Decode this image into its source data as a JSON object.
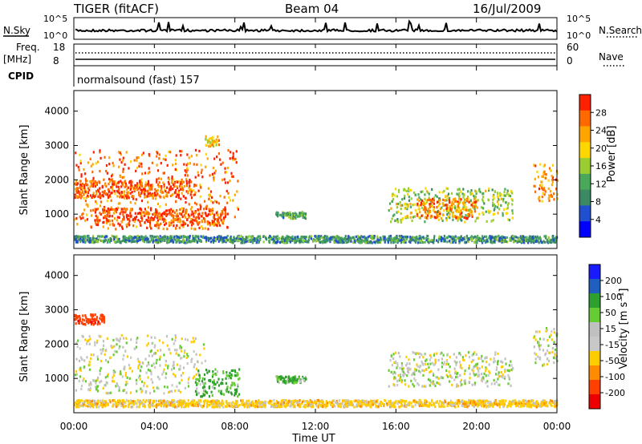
{
  "header": {
    "radar": "TIGER (fitACF)",
    "beam": "Beam 04",
    "date": "16/Jul/2009"
  },
  "noise_panel": {
    "left_label": "N.Sky",
    "right_label": "N.Search",
    "ticks": [
      "10^5",
      "10^0"
    ]
  },
  "freq_panel": {
    "left_label_1": "Freq.",
    "left_label_2": "[MHz]",
    "left_ticks": [
      "18",
      "8"
    ],
    "right_label": "Nave",
    "right_ticks": [
      "60",
      "0"
    ]
  },
  "cpid": {
    "label": "CPID",
    "text": "normalsound (fast) 157"
  },
  "colors": {
    "power": [
      "#0000ff",
      "#2050d0",
      "#3c8a64",
      "#4aa85a",
      "#9acd32",
      "#ffd700",
      "#ffa500",
      "#ff6a00",
      "#ff2000"
    ],
    "velocity": [
      "#1a1aff",
      "#1f5fbf",
      "#2ea02e",
      "#66cc33",
      "#c0c0c0",
      "#c8c8c8",
      "#ffcc00",
      "#ff8c00",
      "#ff4000",
      "#ee0000"
    ],
    "ground": "#b8b8b8"
  },
  "chart_data": [
    {
      "type": "heatmap",
      "name": "power",
      "ylabel": "Slant Range [km]",
      "ylim": [
        0,
        4600
      ],
      "yticks": [
        "4000",
        "3000",
        "2000",
        "1000"
      ],
      "xlim_hours": [
        0,
        24
      ],
      "colorbar_label": "Power [dB]",
      "colorbar_ticks": [
        "28",
        "24",
        "20",
        "16",
        "12",
        "8",
        "4"
      ],
      "colorbar_range": [
        0,
        32
      ],
      "echo_regions": [
        {
          "t0": 0.0,
          "t1": 8.2,
          "r0": 600,
          "r1": 2900,
          "level": 26
        },
        {
          "t0": 0.0,
          "t1": 6.0,
          "r0": 1500,
          "r1": 2000,
          "level": 28
        },
        {
          "t0": 1.0,
          "t1": 7.5,
          "r0": 700,
          "r1": 1200,
          "level": 28
        },
        {
          "t0": 6.5,
          "t1": 7.2,
          "r0": 3000,
          "r1": 3300,
          "level": 22
        },
        {
          "t0": 10.0,
          "t1": 11.5,
          "r0": 900,
          "r1": 1100,
          "level": 12
        },
        {
          "t0": 15.6,
          "t1": 21.8,
          "r0": 800,
          "r1": 1800,
          "level": 16
        },
        {
          "t0": 17.0,
          "t1": 20.0,
          "r0": 900,
          "r1": 1500,
          "level": 26
        },
        {
          "t0": 22.8,
          "t1": 24.0,
          "r0": 1400,
          "r1": 2500,
          "level": 24
        },
        {
          "t0": 0.0,
          "t1": 24.0,
          "r0": 200,
          "r1": 400,
          "level": 10
        }
      ]
    },
    {
      "type": "heatmap",
      "name": "velocity",
      "ylabel": "Slant Range [km]",
      "ylim": [
        0,
        4600
      ],
      "yticks": [
        "4000",
        "3000",
        "2000",
        "1000"
      ],
      "xlim_hours": [
        0,
        24
      ],
      "xticks": [
        "00:00",
        "04:00",
        "08:00",
        "12:00",
        "16:00",
        "20:00",
        "00:00"
      ],
      "xlabel": "Time UT",
      "colorbar_label": "Velocity [m s⁻¹]",
      "colorbar_ticks": [
        "200",
        "100",
        "50",
        "15",
        "-15",
        "-50",
        "-100",
        "-200"
      ],
      "echo_regions": [
        {
          "t0": 0.0,
          "t1": 6.5,
          "r0": 600,
          "r1": 2300,
          "level": 0
        },
        {
          "t0": 6.0,
          "t1": 8.2,
          "r0": 500,
          "r1": 1300,
          "level": 40
        },
        {
          "t0": 10.0,
          "t1": 11.5,
          "r0": 900,
          "r1": 1100,
          "level": 30
        },
        {
          "t0": 15.6,
          "t1": 21.8,
          "r0": 800,
          "r1": 1800,
          "level": 0
        },
        {
          "t0": 22.8,
          "t1": 24.0,
          "r0": 1400,
          "r1": 2500,
          "level": 0
        },
        {
          "t0": 0.0,
          "t1": 1.5,
          "r0": 2600,
          "r1": 2900,
          "level": -150
        },
        {
          "t0": 0.0,
          "t1": 24.0,
          "r0": 200,
          "r1": 400,
          "level": -30
        }
      ]
    }
  ]
}
